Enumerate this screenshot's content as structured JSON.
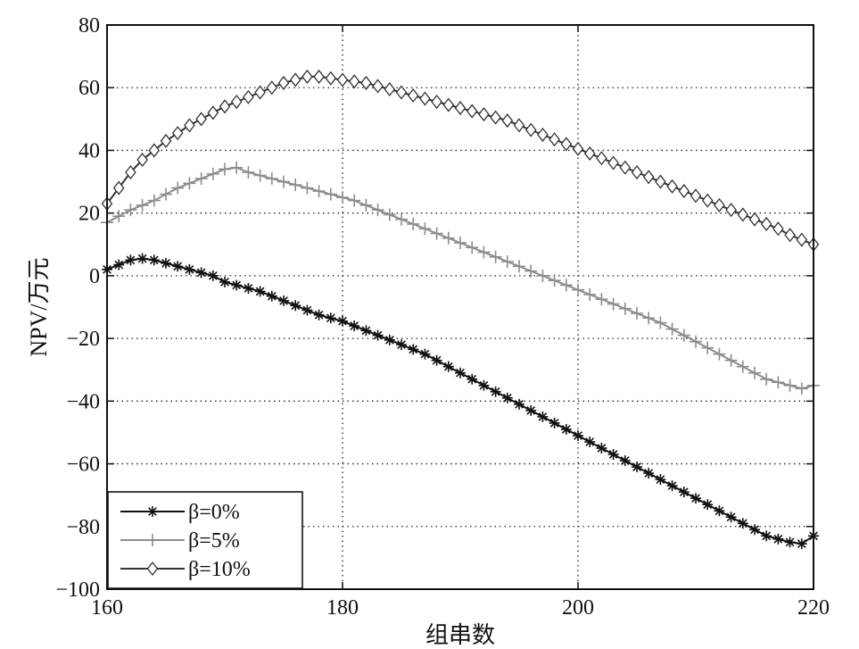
{
  "chart_data": {
    "type": "line",
    "title": "",
    "xlabel": "组串数",
    "ylabel": "NPV/万元",
    "xlim": [
      160,
      220
    ],
    "ylim": [
      -100,
      80
    ],
    "xticks": [
      160,
      180,
      200,
      220
    ],
    "xtick_labels": [
      "160",
      "180",
      "200",
      "220"
    ],
    "yticks": [
      80,
      60,
      40,
      20,
      0,
      -20,
      -40,
      -60,
      -80,
      -100
    ],
    "ytick_labels": [
      "80",
      "60",
      "40",
      "20",
      "0",
      "−20",
      "−40",
      "−60",
      "−80",
      "−100"
    ],
    "grid": true,
    "legend_position": "bottom-left",
    "series": [
      {
        "name": "β=0%",
        "marker": "asterisk",
        "color": "#111111",
        "x": [
          160,
          161,
          162,
          163,
          164,
          165,
          166,
          167,
          168,
          169,
          170,
          171,
          172,
          173,
          174,
          175,
          176,
          177,
          178,
          179,
          180,
          181,
          182,
          183,
          184,
          185,
          186,
          187,
          188,
          189,
          190,
          191,
          192,
          193,
          194,
          195,
          196,
          197,
          198,
          199,
          200,
          201,
          202,
          203,
          204,
          205,
          206,
          207,
          208,
          209,
          210,
          211,
          212,
          213,
          214,
          215,
          216,
          217,
          218,
          219,
          220
        ],
        "y": [
          2,
          3.5,
          5,
          5.5,
          5,
          4,
          3,
          2,
          1,
          0,
          -2,
          -3,
          -4,
          -5,
          -6.5,
          -8,
          -9.5,
          -11,
          -12.5,
          -13.5,
          -14.5,
          -16,
          -17.5,
          -19,
          -20.5,
          -22,
          -23.5,
          -25,
          -27,
          -29,
          -31,
          -33,
          -35,
          -37,
          -39,
          -41,
          -43,
          -45,
          -47,
          -49,
          -51,
          -53,
          -55,
          -57,
          -59,
          -61,
          -63,
          -65,
          -67,
          -69,
          -71,
          -73,
          -75,
          -77,
          -79,
          -81,
          -83,
          -84,
          -85,
          -85.5,
          -83
        ]
      },
      {
        "name": "β=5%",
        "marker": "plus",
        "color": "#8c8c8c",
        "x": [
          160,
          161,
          162,
          163,
          164,
          165,
          166,
          167,
          168,
          169,
          170,
          171,
          172,
          173,
          174,
          175,
          176,
          177,
          178,
          179,
          180,
          181,
          182,
          183,
          184,
          185,
          186,
          187,
          188,
          189,
          190,
          191,
          192,
          193,
          194,
          195,
          196,
          197,
          198,
          199,
          200,
          201,
          202,
          203,
          204,
          205,
          206,
          207,
          208,
          209,
          210,
          211,
          212,
          213,
          214,
          215,
          216,
          217,
          218,
          219,
          220
        ],
        "y": [
          17,
          19,
          21,
          22.5,
          24,
          26,
          28,
          29.5,
          31,
          32.5,
          34,
          34.5,
          33,
          32,
          31,
          30,
          29,
          28,
          27,
          26,
          25,
          24,
          22.5,
          21,
          19.5,
          18,
          16.5,
          15,
          13.5,
          12,
          10.5,
          9,
          7.5,
          6,
          4.5,
          3,
          1.5,
          0,
          -1.5,
          -3,
          -4.5,
          -6,
          -7.5,
          -9,
          -10.5,
          -12,
          -13.5,
          -15,
          -17,
          -19,
          -21,
          -23,
          -25,
          -27,
          -29,
          -31,
          -33,
          -34,
          -35,
          -36,
          -35
        ]
      },
      {
        "name": "β=10%",
        "marker": "diamond",
        "color": "#333333",
        "x": [
          160,
          161,
          162,
          163,
          164,
          165,
          166,
          167,
          168,
          169,
          170,
          171,
          172,
          173,
          174,
          175,
          176,
          177,
          178,
          179,
          180,
          181,
          182,
          183,
          184,
          185,
          186,
          187,
          188,
          189,
          190,
          191,
          192,
          193,
          194,
          195,
          196,
          197,
          198,
          199,
          200,
          201,
          202,
          203,
          204,
          205,
          206,
          207,
          208,
          209,
          210,
          211,
          212,
          213,
          214,
          215,
          216,
          217,
          218,
          219,
          220
        ],
        "y": [
          23,
          28,
          33,
          37,
          40,
          43,
          45.5,
          48,
          50,
          52,
          54,
          55.5,
          57,
          58.5,
          60,
          61.5,
          62.5,
          63.5,
          63.5,
          63,
          62.5,
          62,
          61.5,
          60.5,
          59.5,
          58.5,
          57.5,
          56.5,
          55.5,
          54.5,
          53.5,
          52.5,
          51.5,
          50.5,
          49.5,
          48,
          46.5,
          45,
          43.5,
          42,
          40.5,
          39,
          37.5,
          36,
          34.5,
          33,
          31.5,
          30,
          28.5,
          27,
          25.5,
          24,
          22.5,
          21,
          19.5,
          18,
          16.5,
          15,
          13,
          11.5,
          10
        ]
      }
    ]
  }
}
